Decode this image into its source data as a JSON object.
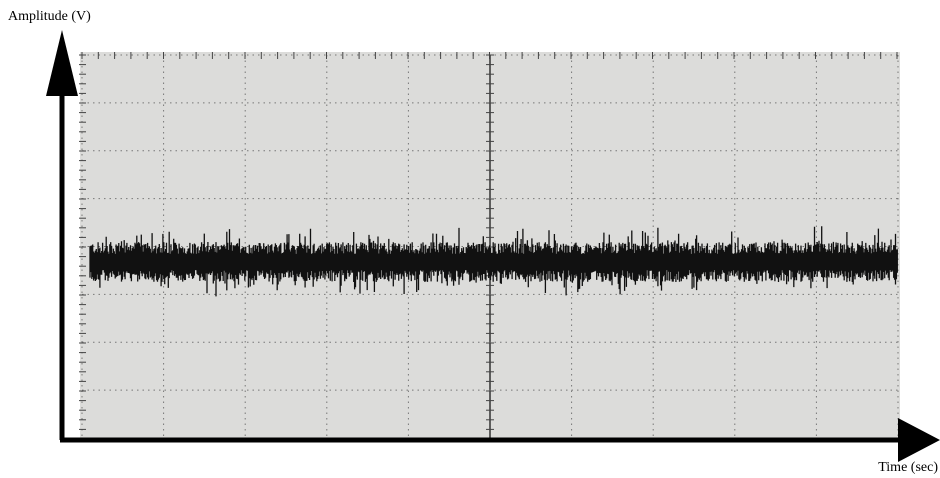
{
  "labels": {
    "y_axis": "Amplitude (V)",
    "x_axis": "Time (sec)"
  }
}
